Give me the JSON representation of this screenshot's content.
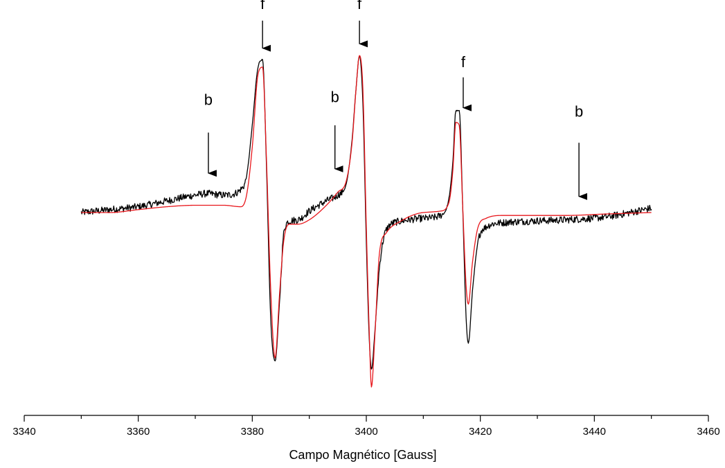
{
  "chart_data": {
    "type": "line",
    "title": "",
    "xlabel": "Campo Magnético [Gauss]",
    "ylabel": "",
    "xlim": [
      3340,
      3460
    ],
    "xticks": [
      3340,
      3360,
      3380,
      3400,
      3420,
      3440,
      3460
    ],
    "yaxis_visible": false,
    "grid": false,
    "legend": "none",
    "x": [
      3350,
      3355,
      3360,
      3365,
      3370,
      3372,
      3375,
      3378,
      3379,
      3380,
      3381,
      3381.8,
      3382.5,
      3383.2,
      3384,
      3384.8,
      3385.5,
      3386.5,
      3388,
      3390,
      3393,
      3395,
      3396.5,
      3397.5,
      3398.2,
      3398.8,
      3399.4,
      3400,
      3400.5,
      3400.9,
      3401.5,
      3402.3,
      3403.5,
      3406,
      3410,
      3413,
      3414.5,
      3415.2,
      3415.7,
      3416.3,
      3416.9,
      3417.5,
      3417.9,
      3418.6,
      3419.6,
      3421,
      3424,
      3428,
      3435,
      3442,
      3450
    ],
    "series": [
      {
        "color": "#000000",
        "noisy": true,
        "values": [
          0.0,
          0.02,
          0.04,
          0.08,
          0.12,
          0.13,
          0.12,
          0.16,
          0.25,
          0.6,
          1.0,
          1.05,
          0.3,
          -0.7,
          -1.02,
          -0.6,
          -0.15,
          -0.06,
          -0.05,
          0.01,
          0.08,
          0.12,
          0.2,
          0.5,
          0.85,
          1.08,
          0.75,
          -0.2,
          -0.85,
          -1.08,
          -0.82,
          -0.38,
          -0.12,
          -0.06,
          -0.04,
          -0.02,
          0.1,
          0.36,
          0.7,
          0.7,
          0.05,
          -0.72,
          -0.9,
          -0.55,
          -0.2,
          -0.1,
          -0.07,
          -0.06,
          -0.05,
          -0.03,
          0.03
        ]
      },
      {
        "color": "#e8161b",
        "noisy": false,
        "values": [
          0.0,
          0.0,
          0.02,
          0.04,
          0.05,
          0.05,
          0.05,
          0.04,
          0.12,
          0.45,
          0.95,
          1.0,
          0.35,
          -0.5,
          -1.0,
          -0.55,
          -0.2,
          -0.08,
          -0.08,
          -0.05,
          0.05,
          0.14,
          0.22,
          0.48,
          0.85,
          1.08,
          0.85,
          -0.1,
          -0.8,
          -1.2,
          -0.85,
          -0.28,
          -0.14,
          -0.06,
          0.0,
          0.01,
          0.07,
          0.3,
          0.62,
          0.6,
          0.05,
          -0.5,
          -0.63,
          -0.35,
          -0.1,
          -0.04,
          -0.02,
          -0.02,
          -0.02,
          -0.01,
          0.0
        ]
      }
    ],
    "annotations": [
      {
        "text": "f",
        "x": 3381.8,
        "label_y": 1.4,
        "arrow_from": 1.32,
        "arrow_to": 1.13
      },
      {
        "text": "f",
        "x": 3398.8,
        "label_y": 1.4,
        "arrow_from": 1.32,
        "arrow_to": 1.16
      },
      {
        "text": "f",
        "x": 3417,
        "label_y": 1.0,
        "arrow_from": 0.93,
        "arrow_to": 0.72
      },
      {
        "text": "b",
        "x": 3372.3,
        "label_y": 0.74,
        "arrow_from": 0.55,
        "arrow_to": 0.27
      },
      {
        "text": "b",
        "x": 3394.5,
        "label_y": 0.76,
        "arrow_from": 0.6,
        "arrow_to": 0.3
      },
      {
        "text": "b",
        "x": 3437.3,
        "label_y": 0.66,
        "arrow_from": 0.48,
        "arrow_to": 0.11
      }
    ]
  }
}
